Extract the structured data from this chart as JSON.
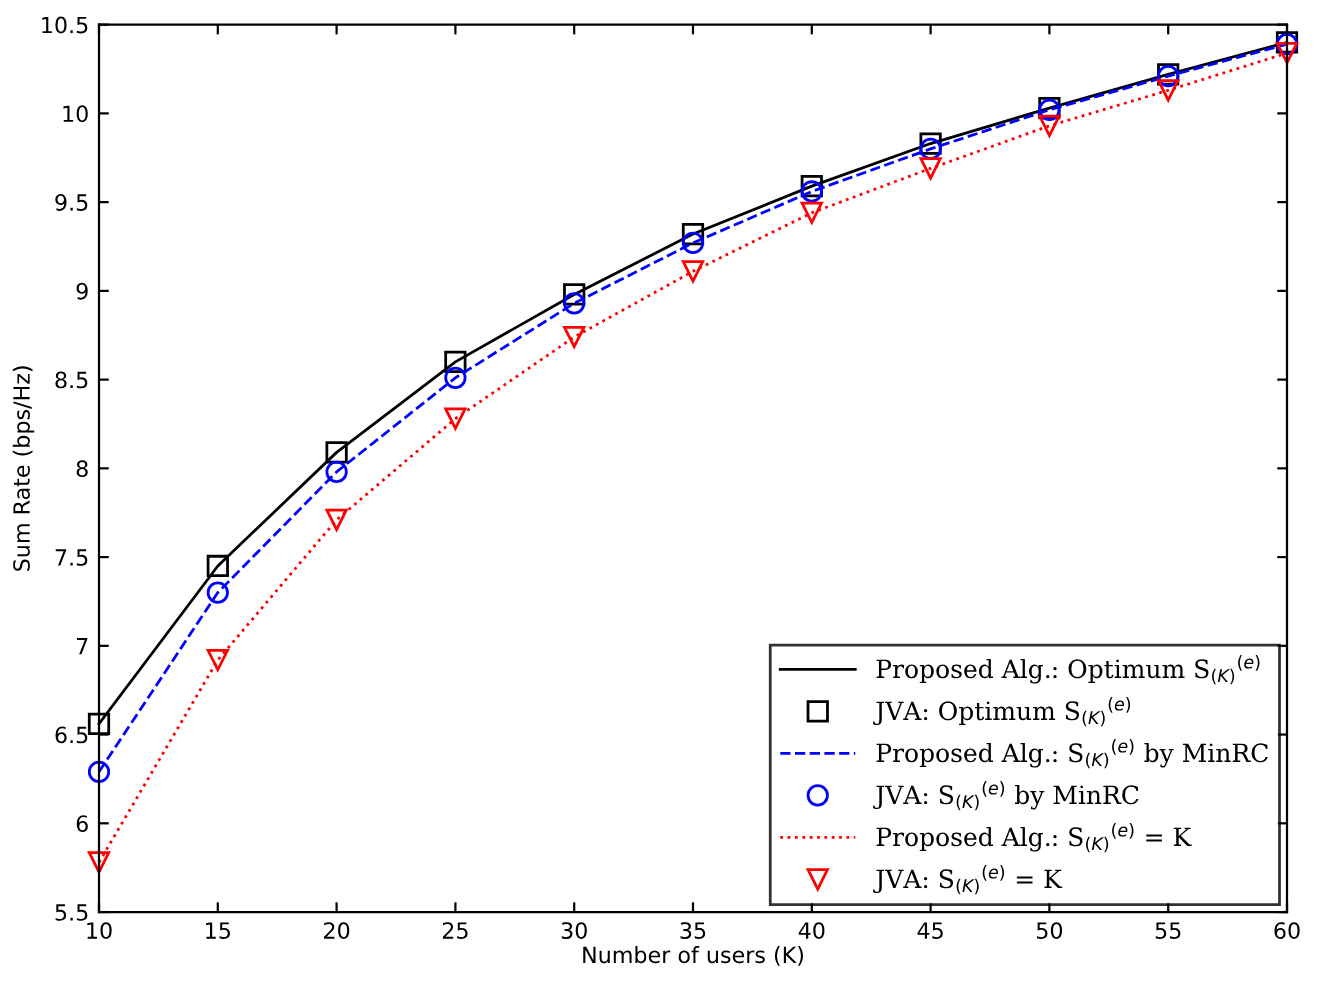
{
  "chart_data": {
    "type": "line",
    "xlabel": "Number of users (K)",
    "ylabel": "Sum Rate (bps/Hz)",
    "x": [
      10,
      15,
      20,
      25,
      30,
      35,
      40,
      45,
      50,
      55,
      60
    ],
    "xlim": [
      10,
      60
    ],
    "xticks": [
      10,
      15,
      20,
      25,
      30,
      35,
      40,
      45,
      50,
      55,
      60
    ],
    "ylim": [
      5.5,
      10.5
    ],
    "yticks": [
      5.5,
      6,
      6.5,
      7,
      7.5,
      8,
      8.5,
      9,
      9.5,
      10,
      10.5
    ],
    "grid": false,
    "legend": "bottom right",
    "series": [
      {
        "name": "Proposed Alg.: Optimum S$_{(K)}$$^{(e)}$",
        "color": "#000000",
        "line_style": "solid",
        "marker": "none",
        "values": [
          6.56,
          7.45,
          8.09,
          8.6,
          8.98,
          9.32,
          9.59,
          9.83,
          10.03,
          10.22,
          10.4
        ]
      },
      {
        "name": "JVA: Optimum S$_{(K)}$$^{(e)}$",
        "type": "scatter",
        "color": "#000000",
        "marker": "square",
        "values": [
          6.56,
          7.45,
          8.09,
          8.6,
          8.98,
          9.32,
          9.59,
          9.83,
          10.03,
          10.22,
          10.4
        ]
      },
      {
        "name": "Proposed Alg.: S$_{(K)}$$^{(e)}$ by MinRC",
        "color": "#0000ff",
        "line_style": "dashed",
        "marker": "none",
        "values": [
          6.29,
          7.3,
          7.98,
          8.51,
          8.93,
          9.27,
          9.56,
          9.8,
          10.02,
          10.21,
          10.39
        ]
      },
      {
        "name": "JVA: S$_{(K)}$$^{(e)}$ by MinRC",
        "type": "scatter",
        "color": "#0000ff",
        "marker": "circle",
        "values": [
          6.29,
          7.3,
          7.98,
          8.51,
          8.93,
          9.27,
          9.56,
          9.8,
          10.02,
          10.21,
          10.39
        ]
      },
      {
        "name": "Proposed Alg.: S$_{(K)}$$^{(e)}$ = K",
        "color": "#ff0000",
        "line_style": "dotted",
        "marker": "none",
        "values": [
          5.78,
          6.92,
          7.71,
          8.28,
          8.74,
          9.11,
          9.44,
          9.69,
          9.93,
          10.13,
          10.34
        ]
      },
      {
        "name": "JVA: S$_{(K)}$$^{(e)}$ = K",
        "type": "scatter",
        "color": "#ff0000",
        "marker": "triangle",
        "values": [
          5.78,
          6.92,
          7.71,
          8.28,
          8.74,
          9.11,
          9.44,
          9.69,
          9.93,
          10.13,
          10.34
        ]
      }
    ]
  }
}
